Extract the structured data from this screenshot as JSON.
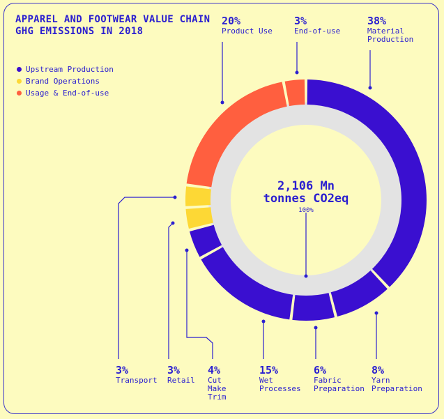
{
  "title": "APPAREL AND FOOTWEAR VALUE CHAIN GHG EMISSIONS IN 2018",
  "legend": [
    {
      "label": "Upstream Production",
      "color": "#3a0fd0"
    },
    {
      "label": "Brand Operations",
      "color": "#fdd835"
    },
    {
      "label": "Usage & End-of-use",
      "color": "#ff5f3f"
    }
  ],
  "center": {
    "line1": "2,106 Mn",
    "line2": "tonnes CO2eq",
    "sub": "100%"
  },
  "chart_data": {
    "type": "pie",
    "style": "donut",
    "total": "2,106 Mn tonnes CO2eq",
    "segments": [
      {
        "label": "Material Production",
        "value": 38,
        "pct_label": "38%",
        "group": "Upstream Production"
      },
      {
        "label": "Yarn Preparation",
        "value": 8,
        "pct_label": "8%",
        "group": "Upstream Production"
      },
      {
        "label": "Fabric Preparation",
        "value": 6,
        "pct_label": "6%",
        "group": "Upstream Production"
      },
      {
        "label": "Wet Processes",
        "value": 15,
        "pct_label": "15%",
        "group": "Upstream Production"
      },
      {
        "label": "Cut Make Trim",
        "value": 4,
        "pct_label": "4%",
        "group": "Upstream Production"
      },
      {
        "label": "Retail",
        "value": 3,
        "pct_label": "3%",
        "group": "Brand Operations"
      },
      {
        "label": "Transport",
        "value": 3,
        "pct_label": "3%",
        "group": "Brand Operations"
      },
      {
        "label": "Product Use",
        "value": 20,
        "pct_label": "20%",
        "group": "Usage & End-of-use"
      },
      {
        "label": "End-of-use",
        "value": 3,
        "pct_label": "3%",
        "group": "Usage & End-of-use"
      }
    ]
  }
}
